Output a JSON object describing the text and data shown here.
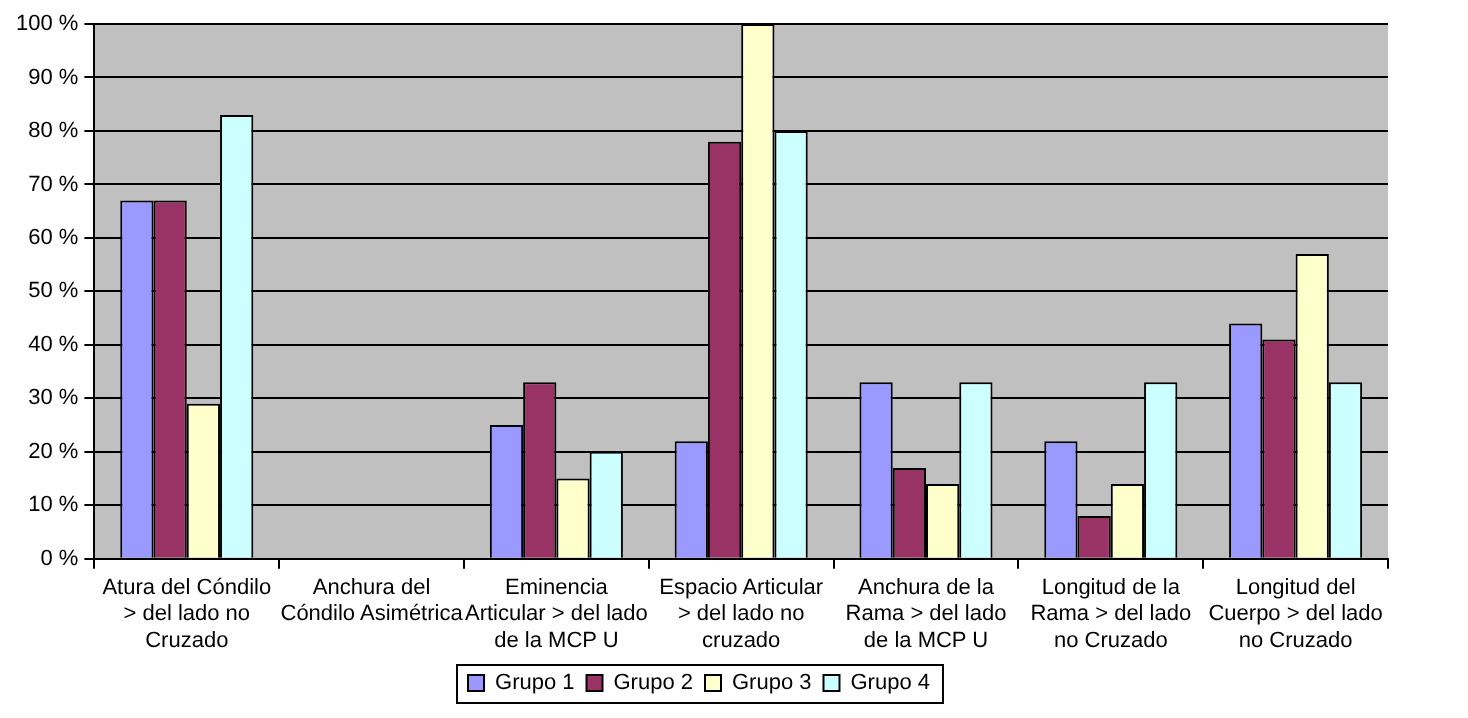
{
  "chart_data": {
    "type": "bar",
    "categories": [
      "Atura del Cóndilo > del lado no Cruzado",
      "Anchura del Cóndilo Asimétrica",
      "Eminencia Articular > del lado de la MCP U",
      "Espacio Articular > del lado no cruzado",
      "Anchura de la Rama > del lado de la MCP U",
      "Longitud de la Rama > del lado no Cruzado",
      "Longitud del Cuerpo > del lado no Cruzado"
    ],
    "series": [
      {
        "name": "Grupo 1",
        "color": "#9999ff",
        "values": [
          67,
          0,
          25,
          22,
          33,
          22,
          44
        ]
      },
      {
        "name": "Grupo 2",
        "color": "#993366",
        "values": [
          67,
          0,
          33,
          78,
          17,
          8,
          41
        ]
      },
      {
        "name": "Grupo 3",
        "color": "#ffffcc",
        "values": [
          29,
          0,
          15,
          100,
          14,
          14,
          57
        ]
      },
      {
        "name": "Grupo 4",
        "color": "#ccffff",
        "values": [
          83,
          0,
          20,
          80,
          33,
          33,
          33
        ]
      }
    ],
    "ylim": [
      0,
      100
    ],
    "yticks": [
      {
        "value": 0,
        "label": "0 %"
      },
      {
        "value": 10,
        "label": "10 %"
      },
      {
        "value": 20,
        "label": "20 %"
      },
      {
        "value": 30,
        "label": "30 %"
      },
      {
        "value": 40,
        "label": "40 %"
      },
      {
        "value": 50,
        "label": "50 %"
      },
      {
        "value": 60,
        "label": "60 %"
      },
      {
        "value": 70,
        "label": "70 %"
      },
      {
        "value": 80,
        "label": "80 %"
      },
      {
        "value": 90,
        "label": "90 %"
      },
      {
        "value": 100,
        "label": "100 %"
      }
    ],
    "grid": "y",
    "legend": "bottom"
  }
}
